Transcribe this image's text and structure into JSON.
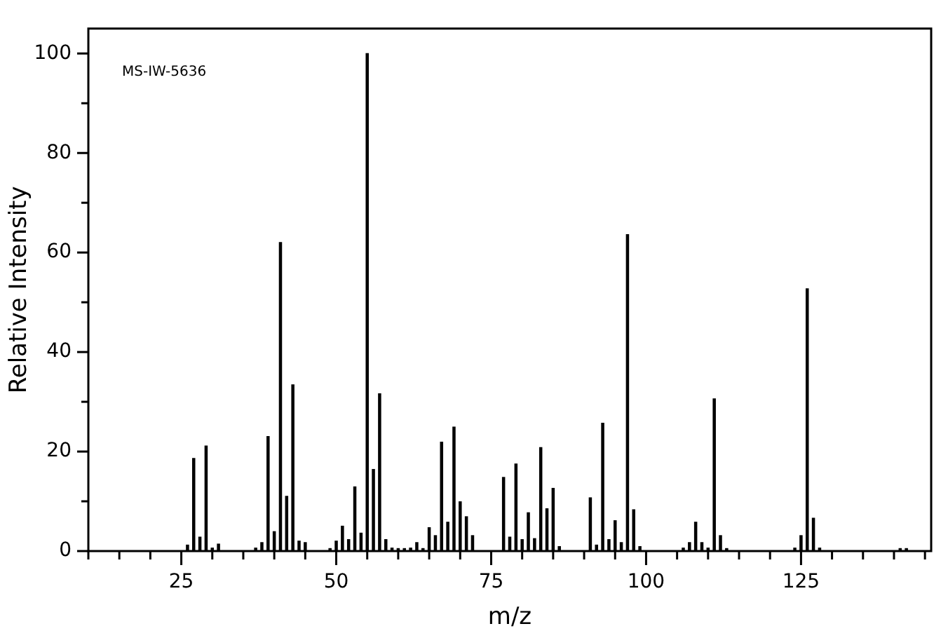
{
  "chart_data": {
    "type": "bar",
    "xlabel": "m/z",
    "ylabel": "Relative Intensity",
    "annotations": [
      "MS-IW-5636"
    ],
    "x": [
      26,
      27,
      28,
      29,
      30,
      31,
      37,
      38,
      39,
      40,
      41,
      42,
      43,
      44,
      45,
      49,
      50,
      51,
      52,
      53,
      54,
      55,
      56,
      57,
      58,
      59,
      60,
      61,
      62,
      63,
      64,
      65,
      66,
      67,
      68,
      69,
      70,
      71,
      72,
      77,
      78,
      79,
      80,
      81,
      82,
      83,
      84,
      85,
      86,
      91,
      92,
      93,
      94,
      95,
      96,
      97,
      98,
      99,
      106,
      107,
      108,
      109,
      110,
      111,
      112,
      113,
      124,
      125,
      126,
      127,
      128,
      141,
      142
    ],
    "series": [
      {
        "color": "#000000",
        "values": [
          1.2,
          18.6,
          2.8,
          21.1,
          0.6,
          1.4,
          0.6,
          1.7,
          23.0,
          3.9,
          62.0,
          11.0,
          33.4,
          2.0,
          1.7,
          0.5,
          2.0,
          5.0,
          2.3,
          12.9,
          3.6,
          100,
          16.4,
          31.6,
          2.3,
          0.6,
          0.5,
          0.5,
          0.6,
          1.7,
          0.5,
          4.7,
          3.1,
          21.9,
          5.8,
          24.9,
          9.9,
          6.9,
          3.1,
          14.8,
          2.8,
          17.5,
          2.3,
          7.7,
          2.5,
          20.8,
          8.5,
          12.6,
          0.9,
          10.7,
          1.2,
          25.7,
          2.3,
          6.1,
          1.7,
          63.6,
          8.3,
          0.9,
          0.6,
          1.7,
          5.8,
          1.7,
          0.6,
          30.6,
          3.1,
          0.5,
          0.6,
          3.1,
          52.7,
          6.6,
          0.6,
          0.5,
          0.5
        ]
      }
    ],
    "xlim": [
      10,
      146
    ],
    "xticks": [
      {
        "value": 10,
        "label": null
      },
      {
        "value": 15,
        "label": null
      },
      {
        "value": 20,
        "label": null
      },
      25,
      {
        "value": 30,
        "label": null
      },
      {
        "value": 35,
        "label": null
      },
      {
        "value": 40,
        "label": null
      },
      {
        "value": 45,
        "label": null
      },
      50,
      {
        "value": 55,
        "label": null
      },
      {
        "value": 60,
        "label": null
      },
      {
        "value": 65,
        "label": null
      },
      {
        "value": 70,
        "label": null
      },
      75,
      {
        "value": 80,
        "label": null
      },
      {
        "value": 85,
        "label": null
      },
      {
        "value": 90,
        "label": null
      },
      {
        "value": 95,
        "label": null
      },
      100,
      {
        "value": 105,
        "label": null
      },
      {
        "value": 110,
        "label": null
      },
      {
        "value": 115,
        "label": null
      },
      {
        "value": 120,
        "label": null
      },
      125,
      {
        "value": 130,
        "label": null
      },
      {
        "value": 135,
        "label": null
      },
      {
        "value": 140,
        "label": null
      },
      {
        "value": 145,
        "label": null
      }
    ],
    "ylim": [
      0,
      105
    ],
    "yticks": [
      0,
      {
        "value": 10,
        "label": null
      },
      20,
      {
        "value": 30,
        "label": null
      },
      40,
      {
        "value": 50,
        "label": null
      },
      60,
      {
        "value": 70,
        "label": null
      },
      80,
      {
        "value": 90,
        "label": null
      },
      100
    ],
    "grid": false,
    "legend": false
  }
}
